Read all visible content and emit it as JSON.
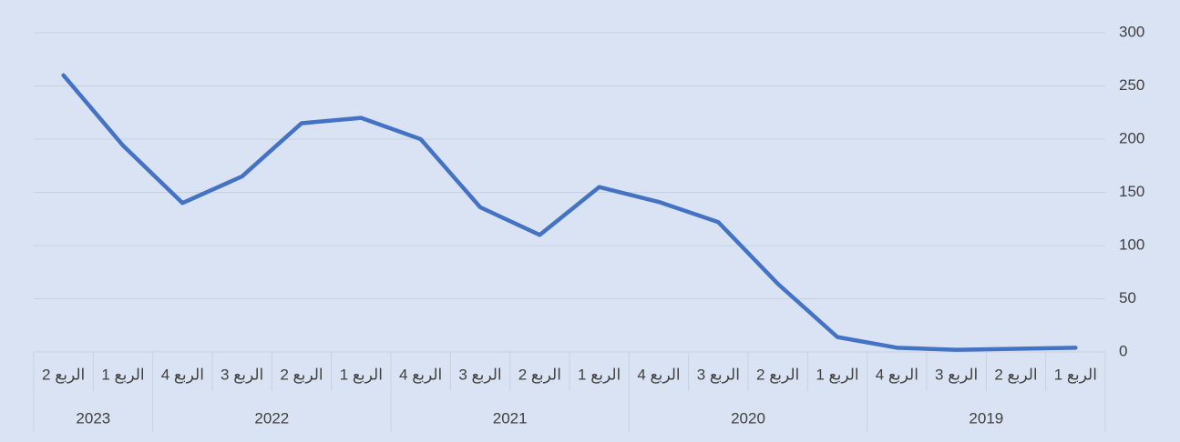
{
  "chart_data": {
    "type": "line",
    "x_reversed": true,
    "groups": [
      {
        "name": "2019",
        "categories": [
          "الربع 1",
          "الربع 2",
          "الربع 3",
          "الربع 4"
        ]
      },
      {
        "name": "2020",
        "categories": [
          "الربع 1",
          "الربع 2",
          "الربع 3",
          "الربع 4"
        ]
      },
      {
        "name": "2021",
        "categories": [
          "الربع 1",
          "الربع 2",
          "الربع 3",
          "الربع 4"
        ]
      },
      {
        "name": "2022",
        "categories": [
          "الربع 1",
          "الربع 2",
          "الربع 3",
          "الربع 4"
        ]
      },
      {
        "name": "2023",
        "categories": [
          "الربع 1",
          "الربع 2"
        ]
      }
    ],
    "values": [
      4,
      3,
      2,
      4,
      14,
      64,
      122,
      141,
      155,
      110,
      136,
      200,
      220,
      215,
      165,
      140,
      194,
      260
    ],
    "color": "#4472c4",
    "ylim": [
      0,
      300
    ],
    "yticks": [
      0,
      50,
      100,
      150,
      200,
      250,
      300
    ],
    "grid": true,
    "y_axis_side": "right"
  }
}
